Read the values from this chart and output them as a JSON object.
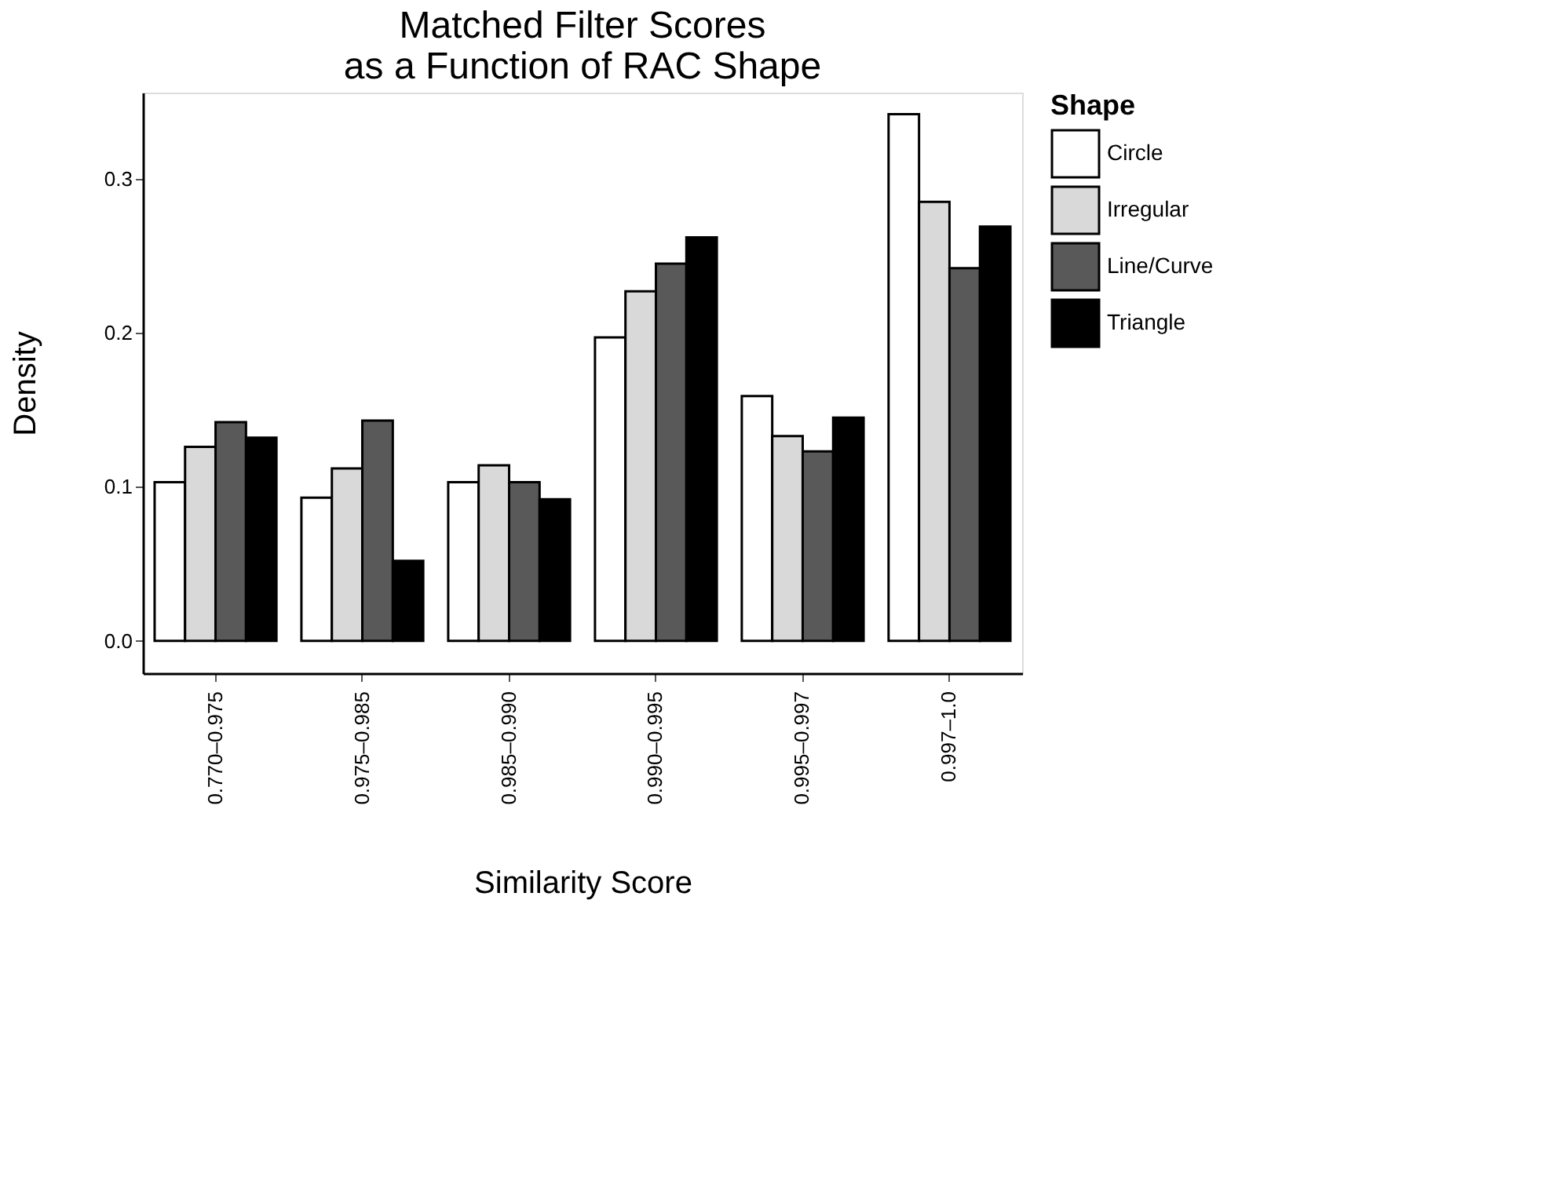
{
  "chart_data": {
    "type": "bar",
    "title": "Matched Filter Scores\nas a Function of RAC Shape",
    "xlabel": "Similarity Score",
    "ylabel": "Density",
    "legend_title": "Shape",
    "categories": [
      "0.770–0.975",
      "0.975–0.985",
      "0.985–0.990",
      "0.990–0.995",
      "0.995–0.997",
      "0.997–1.0"
    ],
    "series": [
      {
        "name": "Circle",
        "color": "#ffffff",
        "values": [
          0.103,
          0.093,
          0.103,
          0.197,
          0.159,
          0.342
        ]
      },
      {
        "name": "Irregular",
        "color": "#d9d9d9",
        "values": [
          0.126,
          0.112,
          0.114,
          0.227,
          0.133,
          0.285
        ]
      },
      {
        "name": "Line/Curve",
        "color": "#595959",
        "values": [
          0.142,
          0.143,
          0.103,
          0.245,
          0.123,
          0.242
        ]
      },
      {
        "name": "Triangle",
        "color": "#000000",
        "values": [
          0.132,
          0.052,
          0.092,
          0.262,
          0.145,
          0.269
        ]
      }
    ],
    "ylim": [
      -0.021,
      0.356
    ],
    "yticks": [
      {
        "value": 0,
        "label": "0.0"
      },
      0.1,
      0.2,
      0.3
    ],
    "grid": false,
    "legend": "right"
  }
}
